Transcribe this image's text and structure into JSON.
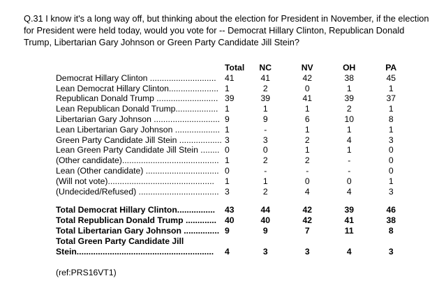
{
  "question": "Q.31 I know it's a long way off, but thinking about the election for President in November, if the election for President were held today, would you vote for -- Democrat Hillary Clinton, Republican Donald Trump, Libertarian Gary Johnson or Green Party Candidate Jill Stein?",
  "headers": {
    "total": "Total",
    "nc": "NC",
    "nv": "NV",
    "oh": "OH",
    "pa": "PA"
  },
  "rows": [
    {
      "label": "Democrat Hillary Clinton ............................",
      "total": "41",
      "nc": "41",
      "nv": "42",
      "oh": "38",
      "pa": "45"
    },
    {
      "label": "Lean Democrat Hillary Clinton.....................",
      "total": "1",
      "nc": "2",
      "nv": "0",
      "oh": "1",
      "pa": "1"
    },
    {
      "label": "Republican Donald Trump ..........................",
      "total": "39",
      "nc": "39",
      "nv": "41",
      "oh": "39",
      "pa": "37"
    },
    {
      "label": "Lean Republican Donald Trump..................",
      "total": "1",
      "nc": "1",
      "nv": "1",
      "oh": "2",
      "pa": "1"
    },
    {
      "label": "Libertarian Gary Johnson ............................",
      "total": "9",
      "nc": "9",
      "nv": "6",
      "oh": "10",
      "pa": "8"
    },
    {
      "label": "Lean Libertarian Gary Johnson ...................",
      "total": "1",
      "nc": "-",
      "nv": "1",
      "oh": "1",
      "pa": "1"
    },
    {
      "label": "Green Party Candidate Jill Stein ..................",
      "total": "3",
      "nc": "3",
      "nv": "2",
      "oh": "4",
      "pa": "3"
    },
    {
      "label": "Lean Green Party Candidate Jill Stein ........",
      "total": "0",
      "nc": "0",
      "nv": "1",
      "oh": "1",
      "pa": "0"
    },
    {
      "label": "(Other candidate).........................................",
      "total": "1",
      "nc": "2",
      "nv": "2",
      "oh": "-",
      "pa": "0"
    },
    {
      "label": "Lean (Other candidate) ...............................",
      "total": "0",
      "nc": "-",
      "nv": "-",
      "oh": "-",
      "pa": "0"
    },
    {
      "label": "(Will not vote).............................................",
      "total": "1",
      "nc": "1",
      "nv": "0",
      "oh": "0",
      "pa": "1"
    },
    {
      "label": "(Undecided/Refused) ..................................",
      "total": "3",
      "nc": "2",
      "nv": "4",
      "oh": "4",
      "pa": "3"
    }
  ],
  "totals": [
    {
      "label": "Total Democrat Hillary Clinton................",
      "total": "43",
      "nc": "44",
      "nv": "42",
      "oh": "39",
      "pa": "46"
    },
    {
      "label": "Total Republican Donald Trump .............",
      "total": "40",
      "nc": "40",
      "nv": "42",
      "oh": "41",
      "pa": "38"
    },
    {
      "label": "Total Libertarian Gary Johnson ...............",
      "total": "9",
      "nc": "9",
      "nv": "7",
      "oh": "11",
      "pa": "8"
    }
  ],
  "last_total": {
    "label_line1": "Total Green Party Candidate Jill",
    "label_line2": "Stein..........................................................",
    "total": "4",
    "nc": "3",
    "nv": "3",
    "oh": "4",
    "pa": "3"
  },
  "ref": "(ref:PRS16VT1)"
}
